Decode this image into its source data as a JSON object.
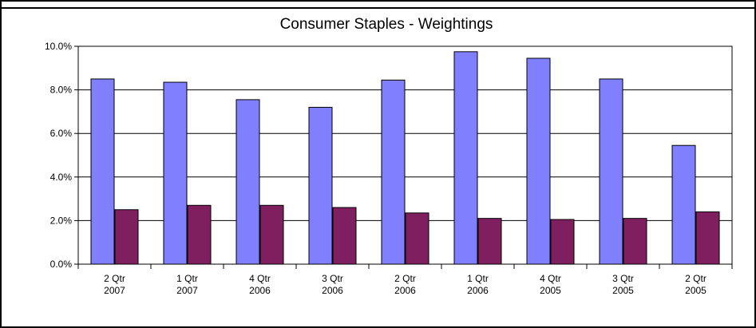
{
  "chart_data": {
    "type": "bar",
    "title": "Consumer Staples  -  Weightings",
    "xlabel": "",
    "ylabel": "",
    "ylim": [
      0,
      10
    ],
    "y_ticks": [
      0,
      2,
      4,
      6,
      8,
      10
    ],
    "y_tick_labels": [
      "0.0%",
      "2.0%",
      "4.0%",
      "6.0%",
      "8.0%",
      "10.0%"
    ],
    "grid": true,
    "legend": "none",
    "categories": [
      [
        "2 Qtr",
        "2007"
      ],
      [
        "1 Qtr",
        "2007"
      ],
      [
        "4 Qtr",
        "2006"
      ],
      [
        "3 Qtr",
        "2006"
      ],
      [
        "2 Qtr",
        "2006"
      ],
      [
        "1 Qtr",
        "2006"
      ],
      [
        "4 Qtr",
        "2005"
      ],
      [
        "3 Qtr",
        "2005"
      ],
      [
        "2 Qtr",
        "2005"
      ]
    ],
    "series": [
      {
        "values": [
          8.5,
          8.35,
          7.55,
          7.2,
          8.45,
          9.75,
          9.45,
          8.5,
          5.45
        ],
        "color": "#8080ff"
      },
      {
        "values": [
          2.5,
          2.7,
          2.7,
          2.6,
          2.35,
          2.1,
          2.05,
          2.1,
          2.4
        ],
        "color": "#7f1f5f"
      }
    ],
    "colors": {
      "plot_background": "#ffffff",
      "gridline": "#000000",
      "frame": "#000000"
    }
  }
}
